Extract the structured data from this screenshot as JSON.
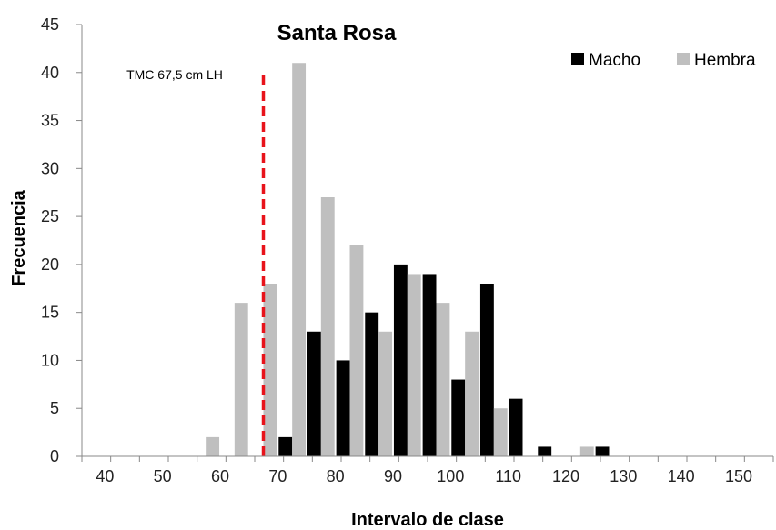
{
  "chart_data": {
    "type": "bar",
    "title": "Santa Rosa",
    "xlabel": "Intervalo de clase",
    "ylabel": "Frecuencia",
    "xlim": [
      36,
      156
    ],
    "ylim": [
      0,
      45
    ],
    "x_ticks": [
      40,
      50,
      60,
      70,
      80,
      90,
      100,
      110,
      120,
      130,
      140,
      150
    ],
    "y_ticks": [
      0,
      5,
      10,
      15,
      20,
      25,
      30,
      35,
      40,
      45
    ],
    "categories": [
      60,
      65,
      70,
      75,
      80,
      85,
      90,
      95,
      100,
      105,
      110,
      115,
      120,
      125
    ],
    "series": [
      {
        "name": "Macho",
        "color": "#000000",
        "values": [
          0,
          0,
          2,
          13,
          10,
          15,
          20,
          19,
          8,
          18,
          6,
          1,
          0,
          1
        ]
      },
      {
        "name": "Hembra",
        "color": "#bfbfbf",
        "values": [
          2,
          16,
          18,
          41,
          27,
          22,
          13,
          19,
          16,
          13,
          5,
          0,
          0,
          1
        ]
      }
    ],
    "reference_line": {
      "x": 67.5,
      "label": "TMC 67,5 cm LH",
      "color": "#e8131b",
      "style": "dashed"
    },
    "legend_position": "top-right",
    "grid": false
  }
}
